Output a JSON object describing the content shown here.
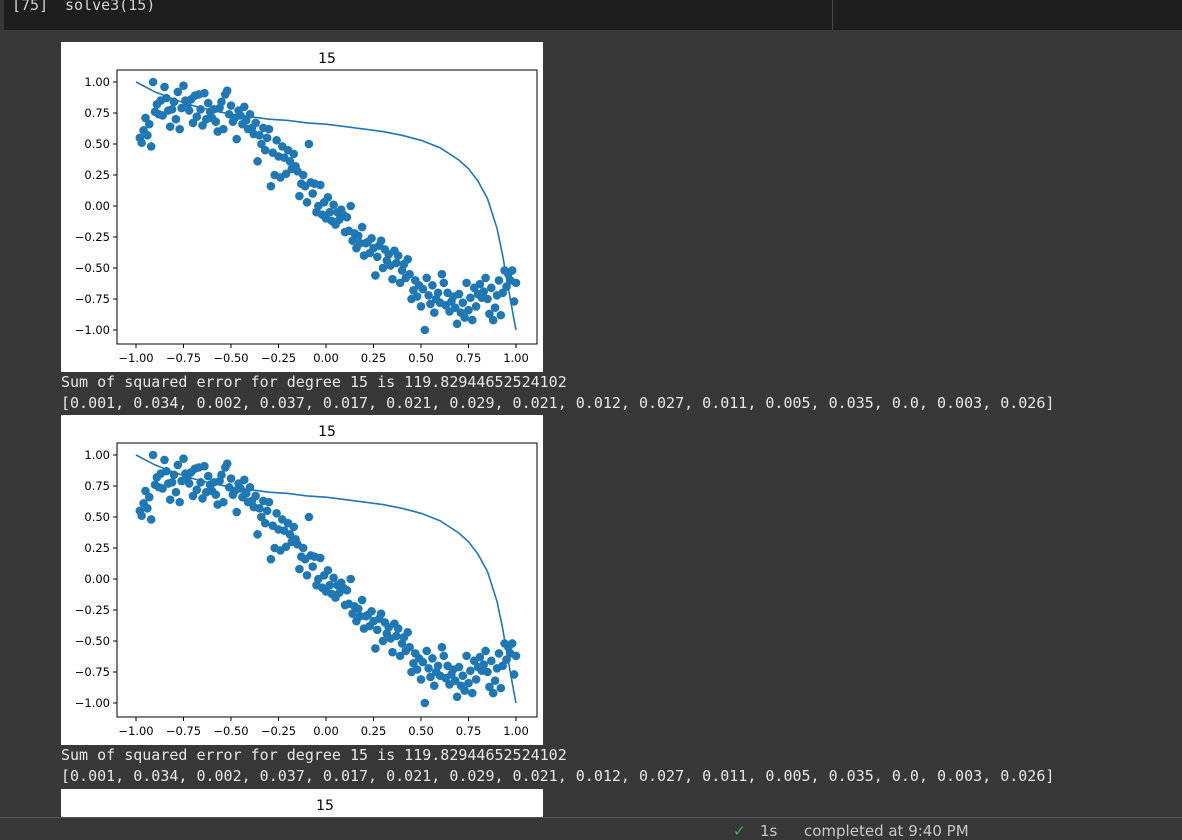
{
  "cell": {
    "exec_count": "[75]",
    "code_fn": "solve3(",
    "code_arg": "15",
    "code_close": ")"
  },
  "outputs": [
    {
      "plot_title": "15",
      "sse_text": "Sum of squared error for degree 15 is 119.82944652524102",
      "coef_text": "[0.001, 0.034, 0.002, 0.037, 0.017, 0.021, 0.029, 0.021, 0.012, 0.027, 0.011, 0.005, 0.035, 0.0, 0.003, 0.026]"
    },
    {
      "plot_title": "15",
      "sse_text": "Sum of squared error for degree 15 is 119.82944652524102",
      "coef_text": "[0.001, 0.034, 0.002, 0.037, 0.017, 0.021, 0.029, 0.021, 0.012, 0.027, 0.011, 0.005, 0.035, 0.0, 0.003, 0.026]"
    },
    {
      "plot_title": "15"
    }
  ],
  "chart_data": {
    "type": "scatter",
    "title": "15",
    "xlim": [
      -1.0,
      1.0
    ],
    "ylim": [
      -1.0,
      1.0
    ],
    "xticks": [
      "−1.00",
      "−0.75",
      "−0.50",
      "−0.25",
      "0.00",
      "0.25",
      "0.50",
      "0.75",
      "1.00"
    ],
    "yticks": [
      "1.00",
      "0.75",
      "0.50",
      "0.25",
      "0.00",
      "−0.25",
      "−0.50",
      "−0.75",
      "−1.00"
    ],
    "xtick_values": [
      -1.0,
      -0.75,
      -0.5,
      -0.25,
      0.0,
      0.25,
      0.5,
      0.75,
      1.0
    ],
    "ytick_values": [
      1.0,
      0.75,
      0.5,
      0.25,
      0.0,
      -0.25,
      -0.5,
      -0.75,
      -1.0
    ],
    "point_color": "#1f77b4",
    "line_color": "#1f77b4",
    "scatter_points": [
      [
        -0.98,
        0.55
      ],
      [
        -0.97,
        0.51
      ],
      [
        -0.96,
        0.61
      ],
      [
        -0.95,
        0.71
      ],
      [
        -0.94,
        0.57
      ],
      [
        -0.93,
        0.66
      ],
      [
        -0.92,
        0.48
      ],
      [
        -0.91,
        1.0
      ],
      [
        -0.9,
        0.76
      ],
      [
        -0.89,
        0.82
      ],
      [
        -0.88,
        0.74
      ],
      [
        -0.87,
        0.85
      ],
      [
        -0.86,
        0.73
      ],
      [
        -0.85,
        0.96
      ],
      [
        -0.84,
        0.87
      ],
      [
        -0.83,
        0.77
      ],
      [
        -0.82,
        0.64
      ],
      [
        -0.81,
        0.78
      ],
      [
        -0.8,
        0.84
      ],
      [
        -0.79,
        0.7
      ],
      [
        -0.78,
        0.92
      ],
      [
        -0.77,
        0.62
      ],
      [
        -0.76,
        0.79
      ],
      [
        -0.75,
        0.97
      ],
      [
        -0.74,
        0.85
      ],
      [
        -0.73,
        0.81
      ],
      [
        -0.72,
        0.77
      ],
      [
        -0.71,
        0.86
      ],
      [
        -0.7,
        0.67
      ],
      [
        -0.69,
        0.89
      ],
      [
        -0.68,
        0.72
      ],
      [
        -0.67,
        0.9
      ],
      [
        -0.66,
        0.78
      ],
      [
        -0.65,
        0.65
      ],
      [
        -0.64,
        0.91
      ],
      [
        -0.63,
        0.7
      ],
      [
        -0.62,
        0.83
      ],
      [
        -0.61,
        0.76
      ],
      [
        -0.6,
        0.71
      ],
      [
        -0.59,
        0.78
      ],
      [
        -0.58,
        0.68
      ],
      [
        -0.57,
        0.6
      ],
      [
        -0.56,
        0.79
      ],
      [
        -0.55,
        0.84
      ],
      [
        -0.54,
        0.62
      ],
      [
        -0.53,
        0.9
      ],
      [
        -0.52,
        0.93
      ],
      [
        -0.51,
        0.74
      ],
      [
        -0.5,
        0.81
      ],
      [
        -0.49,
        0.68
      ],
      [
        -0.48,
        0.71
      ],
      [
        -0.47,
        0.54
      ],
      [
        -0.46,
        0.77
      ],
      [
        -0.45,
        0.73
      ],
      [
        -0.44,
        0.66
      ],
      [
        -0.43,
        0.8
      ],
      [
        -0.42,
        0.69
      ],
      [
        -0.41,
        0.62
      ],
      [
        -0.4,
        0.74
      ],
      [
        -0.39,
        0.63
      ],
      [
        -0.38,
        0.58
      ],
      [
        -0.37,
        0.67
      ],
      [
        -0.36,
        0.36
      ],
      [
        -0.35,
        0.57
      ],
      [
        -0.34,
        0.5
      ],
      [
        -0.33,
        0.63
      ],
      [
        -0.32,
        0.45
      ],
      [
        -0.31,
        0.55
      ],
      [
        -0.3,
        0.62
      ],
      [
        -0.29,
        0.16
      ],
      [
        -0.28,
        0.43
      ],
      [
        -0.27,
        0.25
      ],
      [
        -0.26,
        0.53
      ],
      [
        -0.25,
        0.4
      ],
      [
        -0.24,
        0.23
      ],
      [
        -0.23,
        0.48
      ],
      [
        -0.22,
        0.39
      ],
      [
        -0.21,
        0.26
      ],
      [
        -0.2,
        0.45
      ],
      [
        -0.19,
        0.36
      ],
      [
        -0.18,
        0.3
      ],
      [
        -0.17,
        0.42
      ],
      [
        -0.16,
        0.32
      ],
      [
        -0.15,
        0.28
      ],
      [
        -0.14,
        0.08
      ],
      [
        -0.13,
        0.18
      ],
      [
        -0.12,
        0.25
      ],
      [
        -0.11,
        0.16
      ],
      [
        -0.1,
        0.03
      ],
      [
        -0.09,
        0.5
      ],
      [
        -0.08,
        0.19
      ],
      [
        -0.07,
        0.1
      ],
      [
        -0.06,
        0.18
      ],
      [
        -0.05,
        -0.05
      ],
      [
        -0.04,
        0.0
      ],
      [
        -0.03,
        0.17
      ],
      [
        -0.02,
        -0.07
      ],
      [
        -0.01,
        0.03
      ],
      [
        0.0,
        -0.1
      ],
      [
        0.01,
        0.07
      ],
      [
        0.02,
        -0.05
      ],
      [
        0.03,
        -0.12
      ],
      [
        0.04,
        0.01
      ],
      [
        0.05,
        -0.15
      ],
      [
        0.06,
        -0.05
      ],
      [
        0.07,
        -0.11
      ],
      [
        0.08,
        -0.03
      ],
      [
        0.09,
        -0.07
      ],
      [
        0.1,
        -0.21
      ],
      [
        0.11,
        -0.09
      ],
      [
        0.12,
        -0.2
      ],
      [
        0.13,
        0.0
      ],
      [
        0.14,
        -0.28
      ],
      [
        0.15,
        -0.22
      ],
      [
        0.16,
        -0.34
      ],
      [
        0.17,
        -0.24
      ],
      [
        0.18,
        -0.3
      ],
      [
        0.19,
        -0.17
      ],
      [
        0.2,
        -0.4
      ],
      [
        0.21,
        -0.3
      ],
      [
        0.22,
        -0.29
      ],
      [
        0.23,
        -0.38
      ],
      [
        0.24,
        -0.26
      ],
      [
        0.25,
        -0.34
      ],
      [
        0.26,
        -0.56
      ],
      [
        0.27,
        -0.41
      ],
      [
        0.28,
        -0.32
      ],
      [
        0.29,
        -0.28
      ],
      [
        0.3,
        -0.5
      ],
      [
        0.31,
        -0.35
      ],
      [
        0.32,
        -0.44
      ],
      [
        0.33,
        -0.39
      ],
      [
        0.34,
        -0.48
      ],
      [
        0.35,
        -0.59
      ],
      [
        0.36,
        -0.36
      ],
      [
        0.37,
        -0.46
      ],
      [
        0.38,
        -0.4
      ],
      [
        0.39,
        -0.62
      ],
      [
        0.4,
        -0.52
      ],
      [
        0.41,
        -0.47
      ],
      [
        0.42,
        -0.58
      ],
      [
        0.43,
        -0.43
      ],
      [
        0.44,
        -0.55
      ],
      [
        0.45,
        -0.75
      ],
      [
        0.46,
        -0.68
      ],
      [
        0.47,
        -0.6
      ],
      [
        0.48,
        -0.73
      ],
      [
        0.49,
        -0.64
      ],
      [
        0.5,
        -0.81
      ],
      [
        0.51,
        -0.67
      ],
      [
        0.52,
        -1.0
      ],
      [
        0.53,
        -0.58
      ],
      [
        0.54,
        -0.72
      ],
      [
        0.55,
        -0.79
      ],
      [
        0.56,
        -0.64
      ],
      [
        0.57,
        -0.86
      ],
      [
        0.58,
        -0.75
      ],
      [
        0.59,
        -0.7
      ],
      [
        0.6,
        -0.78
      ],
      [
        0.61,
        -0.55
      ],
      [
        0.62,
        -0.62
      ],
      [
        0.63,
        -0.8
      ],
      [
        0.64,
        -0.7
      ],
      [
        0.65,
        -0.85
      ],
      [
        0.66,
        -0.77
      ],
      [
        0.67,
        -0.73
      ],
      [
        0.68,
        -0.82
      ],
      [
        0.69,
        -0.95
      ],
      [
        0.7,
        -0.71
      ],
      [
        0.71,
        -0.86
      ],
      [
        0.72,
        -0.78
      ],
      [
        0.73,
        -0.9
      ],
      [
        0.74,
        -0.62
      ],
      [
        0.75,
        -0.84
      ],
      [
        0.76,
        -0.74
      ],
      [
        0.77,
        -0.92
      ],
      [
        0.78,
        -0.66
      ],
      [
        0.79,
        -0.81
      ],
      [
        0.8,
        -0.71
      ],
      [
        0.81,
        -0.63
      ],
      [
        0.82,
        -0.74
      ],
      [
        0.83,
        -0.69
      ],
      [
        0.84,
        -0.58
      ],
      [
        0.85,
        -0.75
      ],
      [
        0.86,
        -0.87
      ],
      [
        0.87,
        -0.66
      ],
      [
        0.88,
        -0.92
      ],
      [
        0.89,
        -0.82
      ],
      [
        0.9,
        -0.72
      ],
      [
        0.91,
        -0.6
      ],
      [
        0.92,
        -0.88
      ],
      [
        0.93,
        -0.7
      ],
      [
        0.94,
        -0.52
      ],
      [
        0.95,
        -0.65
      ],
      [
        0.96,
        -0.55
      ],
      [
        0.97,
        -0.6
      ],
      [
        0.98,
        -0.52
      ],
      [
        0.99,
        -0.77
      ],
      [
        1.0,
        -0.62
      ]
    ],
    "line_points": [
      [
        -1.0,
        1.0
      ],
      [
        -0.9,
        0.92
      ],
      [
        -0.8,
        0.86
      ],
      [
        -0.7,
        0.81
      ],
      [
        -0.6,
        0.77
      ],
      [
        -0.5,
        0.74
      ],
      [
        -0.4,
        0.72
      ],
      [
        -0.3,
        0.7
      ],
      [
        -0.2,
        0.69
      ],
      [
        -0.1,
        0.67
      ],
      [
        0.0,
        0.66
      ],
      [
        0.1,
        0.64
      ],
      [
        0.2,
        0.62
      ],
      [
        0.3,
        0.6
      ],
      [
        0.4,
        0.57
      ],
      [
        0.5,
        0.53
      ],
      [
        0.6,
        0.47
      ],
      [
        0.7,
        0.37
      ],
      [
        0.75,
        0.3
      ],
      [
        0.8,
        0.2
      ],
      [
        0.85,
        0.06
      ],
      [
        0.9,
        -0.18
      ],
      [
        0.93,
        -0.4
      ],
      [
        0.95,
        -0.58
      ],
      [
        0.97,
        -0.75
      ],
      [
        0.99,
        -0.92
      ],
      [
        1.0,
        -1.0
      ]
    ]
  }
}
